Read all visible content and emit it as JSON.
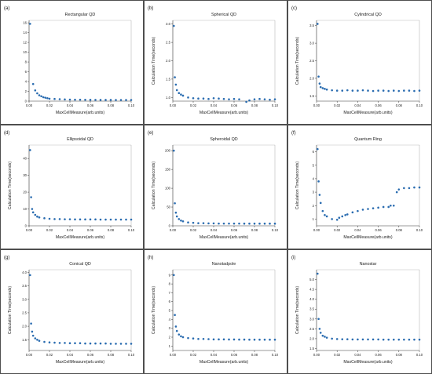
{
  "figure": {
    "xlabel": "MaxCellMeasure(arb.units)",
    "ylabel": "Calculation Time(seconds)"
  },
  "colors": {
    "points": "#2a6cb0",
    "border": "#222222"
  },
  "chart_data": [
    {
      "type": "scatter",
      "letter": "(a)",
      "title": "Rectangular QD",
      "xlabel": "MaxCellMeasure(arb.units)",
      "ylabel": "",
      "xlim": [
        0,
        0.1
      ],
      "ylim": [
        0,
        16.5
      ],
      "xticks": [
        "0.00",
        "0.02",
        "0.04",
        "0.06",
        "0.08",
        "0.10"
      ],
      "yticks": [
        0,
        2,
        4,
        6,
        8,
        10,
        12,
        14,
        16
      ],
      "x": [
        0.001,
        0.004,
        0.006,
        0.008,
        0.01,
        0.012,
        0.014,
        0.016,
        0.018,
        0.02,
        0.025,
        0.03,
        0.035,
        0.04,
        0.045,
        0.05,
        0.055,
        0.06,
        0.065,
        0.07,
        0.075,
        0.08,
        0.085,
        0.09,
        0.095,
        0.1
      ],
      "y": [
        15.8,
        3.5,
        2.2,
        1.6,
        1.2,
        1.0,
        0.8,
        0.7,
        0.6,
        0.5,
        0.45,
        0.4,
        0.35,
        0.32,
        0.3,
        0.3,
        0.28,
        0.27,
        0.26,
        0.25,
        0.25,
        0.25,
        0.24,
        0.24,
        0.24,
        0.24
      ]
    },
    {
      "type": "scatter",
      "letter": "(b)",
      "title": "Spherical QD",
      "xlabel": "MaxCellMeasure(arb.units)",
      "ylabel": "Calculation Time(seconds)",
      "xlim": [
        0,
        0.1
      ],
      "ylim": [
        0.9,
        3.1
      ],
      "xticks": [
        "0.00",
        "0.02",
        "0.04",
        "0.06",
        "0.08",
        "0.10"
      ],
      "yticks": [
        1.0,
        1.5,
        2.0,
        2.5,
        3.0
      ],
      "x": [
        0.001,
        0.002,
        0.003,
        0.004,
        0.006,
        0.008,
        0.01,
        0.015,
        0.02,
        0.025,
        0.03,
        0.035,
        0.04,
        0.045,
        0.05,
        0.055,
        0.06,
        0.065,
        0.068,
        0.07,
        0.072,
        0.075,
        0.08,
        0.085,
        0.09,
        0.095,
        0.1
      ],
      "y": [
        2.95,
        1.55,
        1.35,
        1.2,
        1.12,
        1.08,
        1.05,
        1.0,
        0.98,
        0.97,
        0.97,
        0.96,
        0.98,
        0.97,
        0.96,
        0.95,
        0.96,
        0.95,
        0.82,
        0.8,
        0.88,
        0.92,
        0.95,
        0.96,
        0.95,
        0.94,
        0.95
      ]
    },
    {
      "type": "scatter",
      "letter": "(c)",
      "title": "Cylindrical QD",
      "xlabel": "MaxCellMeasure(arb.units)",
      "ylabel": "Calculation Time(seconds)",
      "xlim": [
        0,
        0.1
      ],
      "ylim": [
        1.35,
        3.65
      ],
      "xticks": [
        "0.00",
        "0.02",
        "0.04",
        "0.06",
        "0.08",
        "0.10"
      ],
      "yticks": [
        1.5,
        2.0,
        2.5,
        3.0,
        3.5
      ],
      "x": [
        0.001,
        0.002,
        0.003,
        0.004,
        0.006,
        0.008,
        0.01,
        0.015,
        0.02,
        0.025,
        0.03,
        0.035,
        0.04,
        0.045,
        0.05,
        0.055,
        0.06,
        0.065,
        0.07,
        0.075,
        0.08,
        0.085,
        0.09,
        0.095,
        0.1
      ],
      "y": [
        3.55,
        2.05,
        1.85,
        1.75,
        1.72,
        1.7,
        1.68,
        1.66,
        1.65,
        1.65,
        1.66,
        1.65,
        1.65,
        1.66,
        1.65,
        1.64,
        1.65,
        1.65,
        1.64,
        1.65,
        1.64,
        1.65,
        1.65,
        1.64,
        1.65
      ]
    },
    {
      "type": "scatter",
      "letter": "(d)",
      "title": "Ellipsoidal QD",
      "xlabel": "MaxCellMeasure(arb.units)",
      "ylabel": "Calculation Time(seconds)",
      "xlim": [
        0,
        0.1
      ],
      "ylim": [
        0,
        48
      ],
      "xticks": [
        "0.00",
        "0.02",
        "0.04",
        "0.06",
        "0.08",
        "0.10"
      ],
      "yticks": [
        0,
        10,
        20,
        30,
        40
      ],
      "x": [
        0.001,
        0.002,
        0.003,
        0.004,
        0.006,
        0.008,
        0.01,
        0.015,
        0.02,
        0.025,
        0.03,
        0.035,
        0.04,
        0.045,
        0.05,
        0.055,
        0.06,
        0.065,
        0.07,
        0.075,
        0.08,
        0.085,
        0.09,
        0.095,
        0.1
      ],
      "y": [
        45,
        17,
        10,
        8,
        6.5,
        5.5,
        5,
        4.5,
        4.2,
        4,
        4,
        3.9,
        3.9,
        3.8,
        3.8,
        3.8,
        3.8,
        3.8,
        3.7,
        3.7,
        3.7,
        3.7,
        3.7,
        3.7,
        3.7
      ]
    },
    {
      "type": "scatter",
      "letter": "(e)",
      "title": "Spheroidal QD",
      "xlabel": "MaxCellMeasure(arb.units)",
      "ylabel": "Calculation Time(seconds)",
      "xlim": [
        0,
        0.1
      ],
      "ylim": [
        0,
        215
      ],
      "xticks": [
        "0.00",
        "0.02",
        "0.04",
        "0.06",
        "0.08",
        "0.10"
      ],
      "yticks": [
        0,
        50,
        100,
        150,
        200
      ],
      "x": [
        0.001,
        0.002,
        0.003,
        0.004,
        0.006,
        0.008,
        0.01,
        0.015,
        0.02,
        0.025,
        0.03,
        0.035,
        0.04,
        0.045,
        0.05,
        0.055,
        0.06,
        0.065,
        0.07,
        0.075,
        0.08,
        0.085,
        0.09,
        0.095,
        0.1
      ],
      "y": [
        200,
        60,
        35,
        25,
        18,
        14,
        12,
        9,
        8,
        7,
        7,
        6.5,
        6.5,
        6,
        6,
        6,
        6,
        6,
        5.8,
        5.8,
        5.8,
        5.8,
        5.8,
        5.8,
        5.8
      ]
    },
    {
      "type": "scatter",
      "letter": "(f)",
      "title": "Quantum Ring",
      "xlabel": "MaxCellMeasure(arb.units)",
      "ylabel": "Calculation Time(seconds)",
      "xlim": [
        0,
        0.1
      ],
      "ylim": [
        0.5,
        6.5
      ],
      "xticks": [
        "0.00",
        "0.02",
        "0.04",
        "0.06",
        "0.08",
        "0.10"
      ],
      "yticks": [
        1,
        2,
        3,
        4,
        5,
        6
      ],
      "x": [
        0.001,
        0.002,
        0.003,
        0.004,
        0.006,
        0.008,
        0.01,
        0.015,
        0.02,
        0.022,
        0.025,
        0.028,
        0.03,
        0.035,
        0.04,
        0.045,
        0.05,
        0.055,
        0.06,
        0.065,
        0.07,
        0.072,
        0.075,
        0.078,
        0.08,
        0.085,
        0.09,
        0.095,
        0.1
      ],
      "y": [
        6.2,
        3.8,
        2.8,
        2.2,
        1.6,
        1.3,
        1.2,
        1.0,
        0.95,
        1.1,
        1.2,
        1.3,
        1.35,
        1.5,
        1.6,
        1.7,
        1.75,
        1.8,
        1.85,
        1.9,
        1.9,
        2.0,
        2.0,
        3.0,
        3.2,
        3.3,
        3.3,
        3.35,
        3.35
      ]
    },
    {
      "type": "scatter",
      "letter": "(g)",
      "title": "Conical QD",
      "xlabel": "MaxCellMeasure(arb.units)",
      "ylabel": "Calculation Time(seconds)",
      "xlim": [
        0,
        0.1
      ],
      "ylim": [
        1.1,
        4.1
      ],
      "xticks": [
        "0.00",
        "0.02",
        "0.04",
        "0.06",
        "0.08",
        "0.10"
      ],
      "yticks": [
        1.5,
        2.0,
        2.5,
        3.0,
        3.5,
        4.0
      ],
      "x": [
        0.001,
        0.002,
        0.003,
        0.004,
        0.006,
        0.008,
        0.01,
        0.015,
        0.02,
        0.025,
        0.03,
        0.035,
        0.04,
        0.045,
        0.05,
        0.055,
        0.06,
        0.065,
        0.07,
        0.075,
        0.08,
        0.085,
        0.09,
        0.095,
        0.1
      ],
      "y": [
        3.9,
        2.1,
        1.8,
        1.65,
        1.55,
        1.5,
        1.46,
        1.42,
        1.4,
        1.39,
        1.38,
        1.38,
        1.37,
        1.37,
        1.37,
        1.36,
        1.36,
        1.36,
        1.36,
        1.36,
        1.35,
        1.35,
        1.35,
        1.35,
        1.35
      ]
    },
    {
      "type": "scatter",
      "letter": "(h)",
      "title": "Nanotadpole",
      "xlabel": "MaxCellMeasure(arb.units)",
      "ylabel": "Calculation Time(seconds)",
      "xlim": [
        0,
        0.1
      ],
      "ylim": [
        0.5,
        9.6
      ],
      "xticks": [
        "0.00",
        "0.02",
        "0.04",
        "0.06",
        "0.08",
        "0.10"
      ],
      "yticks": [
        1,
        2,
        3,
        4,
        5,
        6,
        7,
        8,
        9
      ],
      "x": [
        0.001,
        0.002,
        0.003,
        0.004,
        0.006,
        0.008,
        0.01,
        0.015,
        0.02,
        0.025,
        0.03,
        0.035,
        0.04,
        0.045,
        0.05,
        0.055,
        0.06,
        0.065,
        0.07,
        0.075,
        0.08,
        0.085,
        0.09,
        0.095,
        0.1
      ],
      "y": [
        9.0,
        4.5,
        3.2,
        2.7,
        2.3,
        2.1,
        2.0,
        1.9,
        1.85,
        1.8,
        1.8,
        1.78,
        1.75,
        1.75,
        1.75,
        1.74,
        1.74,
        1.73,
        1.73,
        1.72,
        1.72,
        1.72,
        1.72,
        1.72,
        1.72
      ]
    },
    {
      "type": "scatter",
      "letter": "(i)",
      "title": "Nanostar",
      "xlabel": "MaxCellMeasure(arb.units)",
      "ylabel": "Calculation Time(seconds)",
      "xlim": [
        0,
        0.1
      ],
      "ylim": [
        1.4,
        5.5
      ],
      "xticks": [
        "0.00",
        "0.02",
        "0.04",
        "0.06",
        "0.08",
        "0.10"
      ],
      "yticks": [
        1.5,
        2.0,
        2.5,
        3.0,
        3.5,
        4.0,
        4.5,
        5.0
      ],
      "x": [
        0.001,
        0.002,
        0.003,
        0.004,
        0.006,
        0.008,
        0.01,
        0.015,
        0.02,
        0.025,
        0.03,
        0.035,
        0.04,
        0.045,
        0.05,
        0.055,
        0.06,
        0.065,
        0.07,
        0.075,
        0.08,
        0.085,
        0.09,
        0.095,
        0.1
      ],
      "y": [
        5.3,
        3.0,
        2.5,
        2.3,
        2.15,
        2.1,
        2.05,
        2.0,
        1.98,
        1.97,
        1.97,
        1.96,
        1.96,
        1.96,
        1.96,
        1.96,
        1.96,
        1.95,
        1.95,
        1.95,
        1.95,
        1.95,
        1.95,
        1.95,
        1.95
      ]
    }
  ]
}
